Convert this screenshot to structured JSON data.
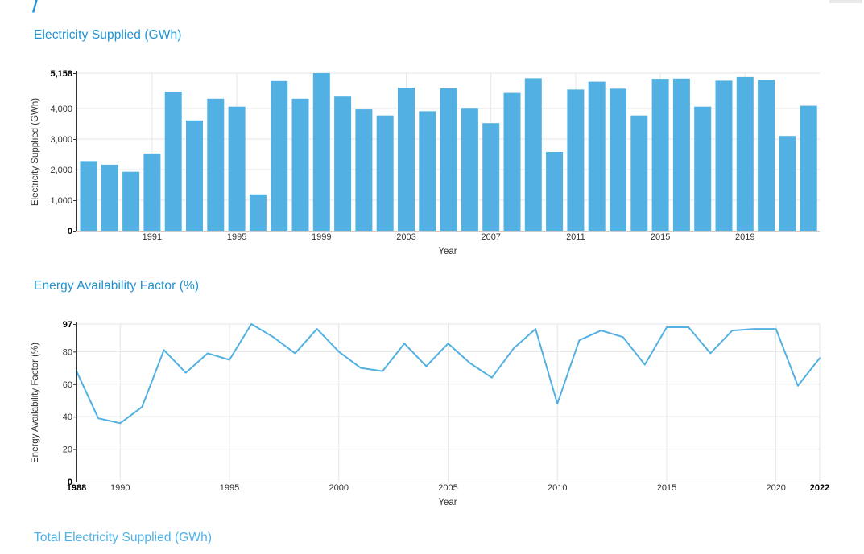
{
  "page": {
    "breadcrumb_slash": "/",
    "section_titles": [
      "Electricity Supplied (GWh)",
      "Energy Availability Factor (%)",
      "Total Electricity Supplied (GWh)"
    ],
    "section_title_colors": [
      "#1e94d2",
      "#1e94d2",
      "#4db3ea"
    ]
  },
  "colors": {
    "series_blue": "#52b0e2",
    "gridline": "#e6e6e6",
    "axis_line": "#333333",
    "baseline": "#cccccc",
    "tick_label": "#333333",
    "tick_label_bold": "#000000",
    "scrollbar_remnant": "#e8e8e8"
  },
  "chart_data": [
    {
      "type": "bar",
      "title": "Electricity Supplied (GWh)",
      "xlabel": "Year",
      "ylabel": "Electricity Supplied (GWh)",
      "x": [
        1988,
        1989,
        1990,
        1991,
        1992,
        1993,
        1994,
        1995,
        1996,
        1997,
        1998,
        1999,
        2000,
        2001,
        2002,
        2003,
        2004,
        2005,
        2006,
        2007,
        2008,
        2009,
        2010,
        2011,
        2012,
        2013,
        2014,
        2015,
        2016,
        2017,
        2018,
        2019,
        2020,
        2021,
        2022
      ],
      "values": [
        2280,
        2160,
        1930,
        2530,
        4550,
        3610,
        4320,
        4060,
        1190,
        4900,
        4320,
        5158,
        4390,
        3970,
        3770,
        4680,
        3910,
        4660,
        4020,
        3520,
        4510,
        4990,
        2580,
        4620,
        4880,
        4650,
        3770,
        4970,
        4980,
        4060,
        4910,
        5030,
        4940,
        3100,
        4090
      ],
      "ylim": [
        0,
        5158
      ],
      "yticks": [
        {
          "v": 0,
          "label": "0",
          "bold": true
        },
        {
          "v": 1000,
          "label": "1,000"
        },
        {
          "v": 2000,
          "label": "2,000"
        },
        {
          "v": 3000,
          "label": "3,000"
        },
        {
          "v": 4000,
          "label": "4,000"
        },
        {
          "v": 5158,
          "label": "5,158",
          "bold": true
        }
      ],
      "xticks": [
        {
          "v": 1991,
          "label": "1991"
        },
        {
          "v": 1995,
          "label": "1995"
        },
        {
          "v": 1999,
          "label": "1999"
        },
        {
          "v": 2003,
          "label": "2003"
        },
        {
          "v": 2007,
          "label": "2007"
        },
        {
          "v": 2011,
          "label": "2011"
        },
        {
          "v": 2015,
          "label": "2015"
        },
        {
          "v": 2019,
          "label": "2019"
        }
      ],
      "grid": true,
      "legend": "none",
      "color": "#52b0e2"
    },
    {
      "type": "line",
      "title": "Energy Availability Factor (%)",
      "xlabel": "Year",
      "ylabel": "Energy Availability Factor (%)",
      "x": [
        1988,
        1989,
        1990,
        1991,
        1992,
        1993,
        1994,
        1995,
        1996,
        1997,
        1998,
        1999,
        2000,
        2001,
        2002,
        2003,
        2004,
        2005,
        2006,
        2007,
        2008,
        2009,
        2010,
        2011,
        2012,
        2013,
        2014,
        2015,
        2016,
        2017,
        2018,
        2019,
        2020,
        2021,
        2022
      ],
      "values": [
        68,
        39,
        36,
        46,
        81,
        67,
        79,
        75,
        97,
        89,
        79,
        94,
        80,
        70,
        68,
        85,
        71,
        85,
        73,
        64,
        82,
        94,
        48,
        87,
        93,
        89,
        72,
        95,
        95,
        79,
        93,
        94,
        94,
        59,
        76
      ],
      "ylim": [
        0,
        97
      ],
      "yticks": [
        {
          "v": 0,
          "label": "0",
          "bold": true
        },
        {
          "v": 20,
          "label": "20"
        },
        {
          "v": 40,
          "label": "40"
        },
        {
          "v": 60,
          "label": "60"
        },
        {
          "v": 80,
          "label": "80"
        },
        {
          "v": 97,
          "label": "97",
          "bold": true
        }
      ],
      "xticks": [
        {
          "v": 1988,
          "label": "1988",
          "bold": true
        },
        {
          "v": 1990,
          "label": "1990"
        },
        {
          "v": 1995,
          "label": "1995"
        },
        {
          "v": 2000,
          "label": "2000"
        },
        {
          "v": 2005,
          "label": "2005"
        },
        {
          "v": 2010,
          "label": "2010"
        },
        {
          "v": 2015,
          "label": "2015"
        },
        {
          "v": 2020,
          "label": "2020"
        },
        {
          "v": 2022,
          "label": "2022",
          "bold": true
        }
      ],
      "grid": true,
      "legend": "none",
      "color": "#52b0e2"
    }
  ]
}
